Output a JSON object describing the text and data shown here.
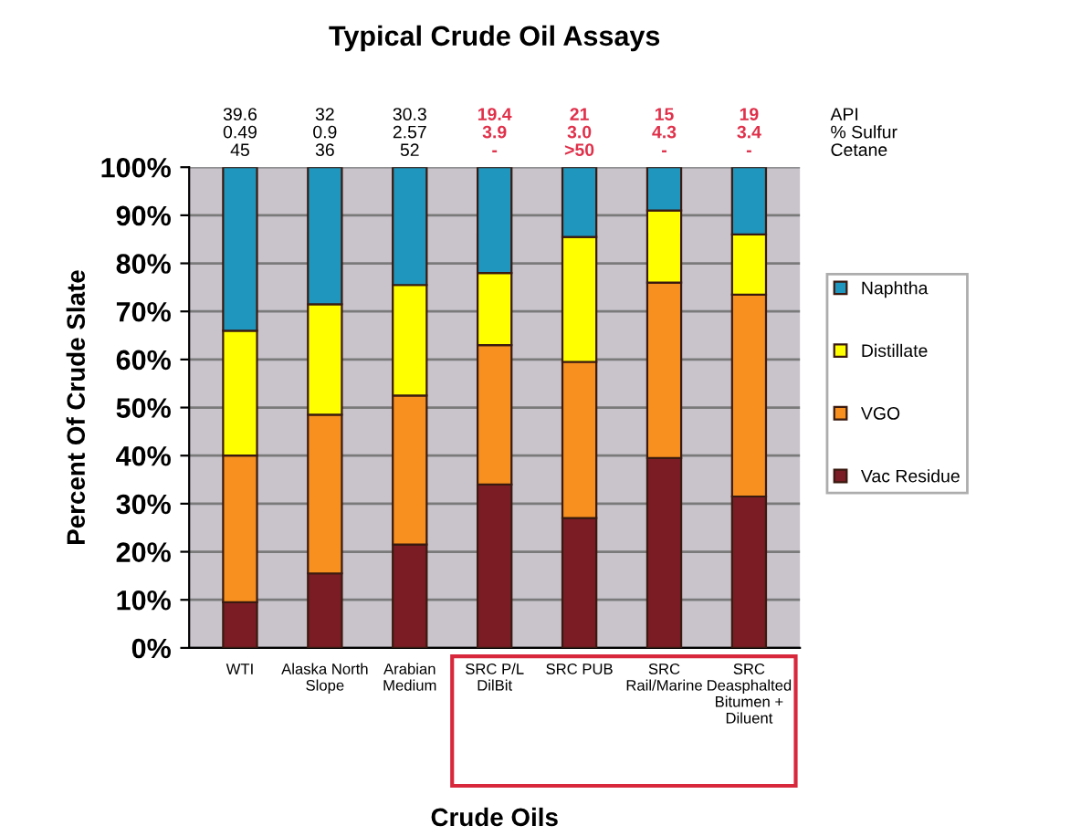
{
  "chart_data": {
    "type": "bar",
    "stacked": true,
    "title": "Typical Crude Oil Assays",
    "xlabel": "Crude Oils",
    "ylabel": "Percent Of Crude Slate",
    "categories": [
      "WTI",
      "Alaska North\nSlope",
      "Arabian\nMedium",
      "SRC P/L\nDilBit",
      "SRC PUB",
      "SRC\nRail/Marine",
      "SRC\nDeasphalted\nBitumen +\nDiluent"
    ],
    "series": [
      {
        "name": "Vac Residue",
        "color": "#7b1c25",
        "values": [
          9.5,
          15.5,
          21.5,
          34,
          27,
          39.5,
          31.5
        ]
      },
      {
        "name": "VGO",
        "color": "#f7901e",
        "values": [
          30.5,
          33,
          31,
          29,
          32.5,
          36.5,
          42
        ]
      },
      {
        "name": "Distillate",
        "color": "#ffff00",
        "values": [
          26,
          23,
          23,
          15,
          26,
          15,
          12.5
        ]
      },
      {
        "name": "Naphtha",
        "color": "#1e96be",
        "values": [
          34,
          28.5,
          24.5,
          22,
          14.5,
          9,
          14
        ]
      }
    ],
    "ylim": [
      0,
      100
    ],
    "yticks": [
      {
        "value": 0,
        "label": "0%"
      },
      {
        "value": 10,
        "label": "10%"
      },
      {
        "value": 20,
        "label": "20%"
      },
      {
        "value": 30,
        "label": "30%"
      },
      {
        "value": 40,
        "label": "40%"
      },
      {
        "value": 50,
        "label": "50%"
      },
      {
        "value": 60,
        "label": "60%"
      },
      {
        "value": 70,
        "label": "70%"
      },
      {
        "value": 80,
        "label": "80%"
      },
      {
        "value": 90,
        "label": "90%"
      },
      {
        "value": 100,
        "label": "100%"
      }
    ],
    "grid": "y",
    "legend": "right",
    "annotations": [
      "39.6\n0.49\n45",
      "32\n0.9\n36",
      "30.3\n2.57\n52",
      "19.4\n3.9\n-",
      "21\n3.0\n>50",
      "15\n4.3\n-",
      "19\n3.4\n-",
      "API\n% Sulfur\nCetane"
    ]
  }
}
